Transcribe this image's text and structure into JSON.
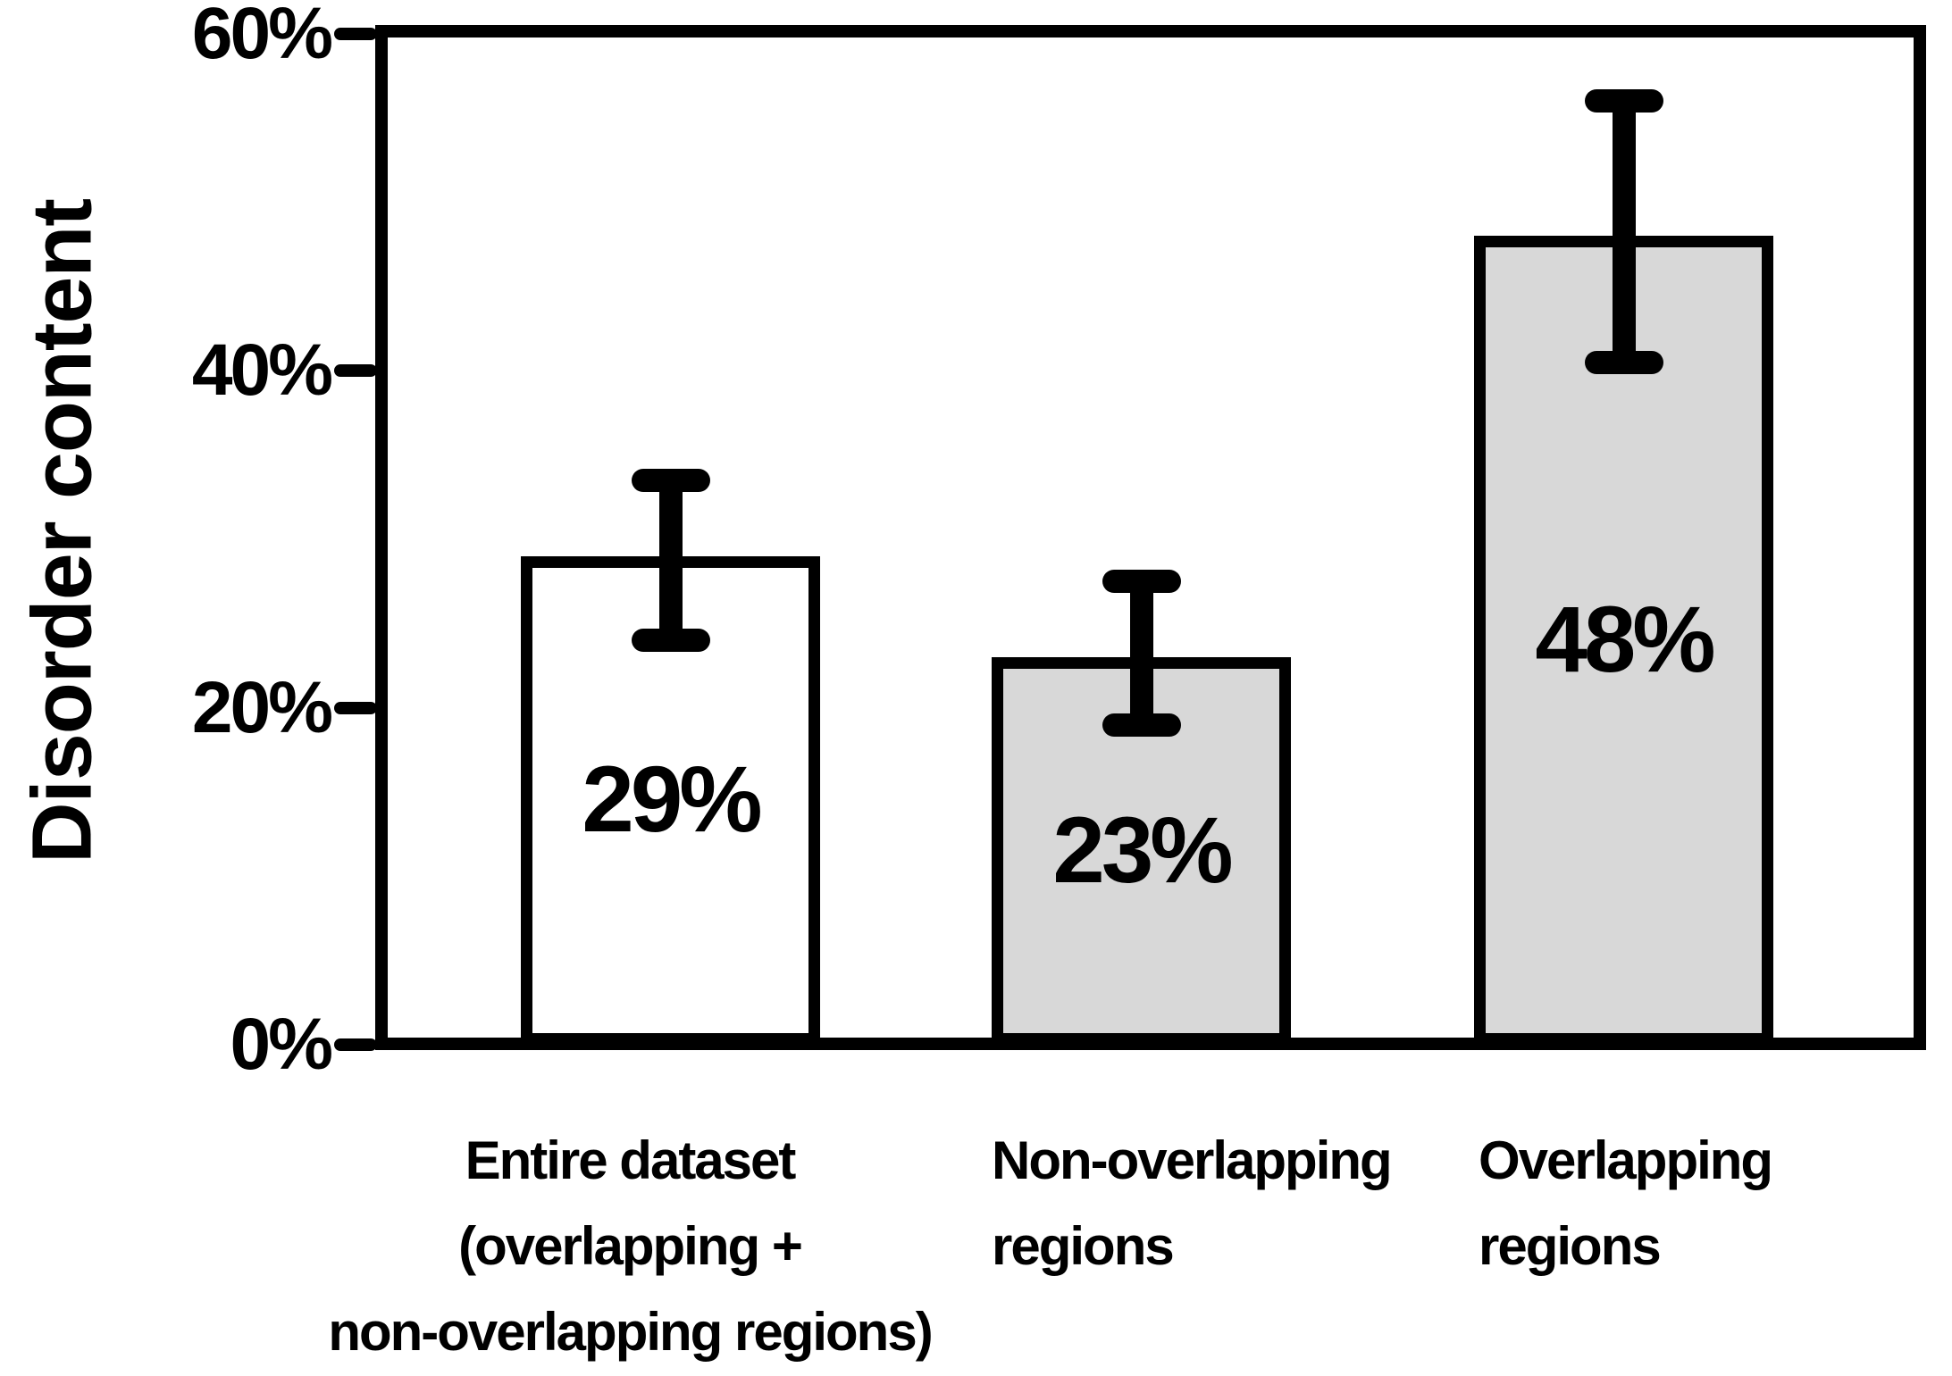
{
  "figure": {
    "background": "#ffffff",
    "line_color": "#000000",
    "gray_fill": "#d8d8d8",
    "white_fill": "#ffffff"
  },
  "chart_data": {
    "type": "bar",
    "title": "",
    "ylabel": "Disorder content",
    "xlabel": "",
    "ylim": [
      0,
      60
    ],
    "grid": false,
    "legend": null,
    "yticks": [
      {
        "value": 0,
        "label": "0%"
      },
      {
        "value": 20,
        "label": "20%"
      },
      {
        "value": 40,
        "label": "40%"
      },
      {
        "value": 60,
        "label": "60%"
      }
    ],
    "categories": [
      "Entire dataset (overlapping + non-overlapping regions)",
      "Non-overlapping regions",
      "Overlapping regions"
    ],
    "bars": [
      {
        "category_lines": [
          "Entire dataset",
          "(overlapping +",
          "non-overlapping regions)"
        ],
        "value": 29,
        "label": "29%",
        "error_low": 24,
        "error_high": 33.5,
        "fill": "#ffffff",
        "label_align": "center"
      },
      {
        "category_lines": [
          "Non-overlapping",
          "regions"
        ],
        "value": 23,
        "label": "23%",
        "error_low": 19,
        "error_high": 27.5,
        "fill": "#d8d8d8",
        "label_align": "left"
      },
      {
        "category_lines": [
          "Overlapping",
          "regions"
        ],
        "value": 48,
        "label": "48%",
        "error_low": 40.5,
        "error_high": 56,
        "fill": "#d8d8d8",
        "label_align": "left"
      }
    ]
  }
}
